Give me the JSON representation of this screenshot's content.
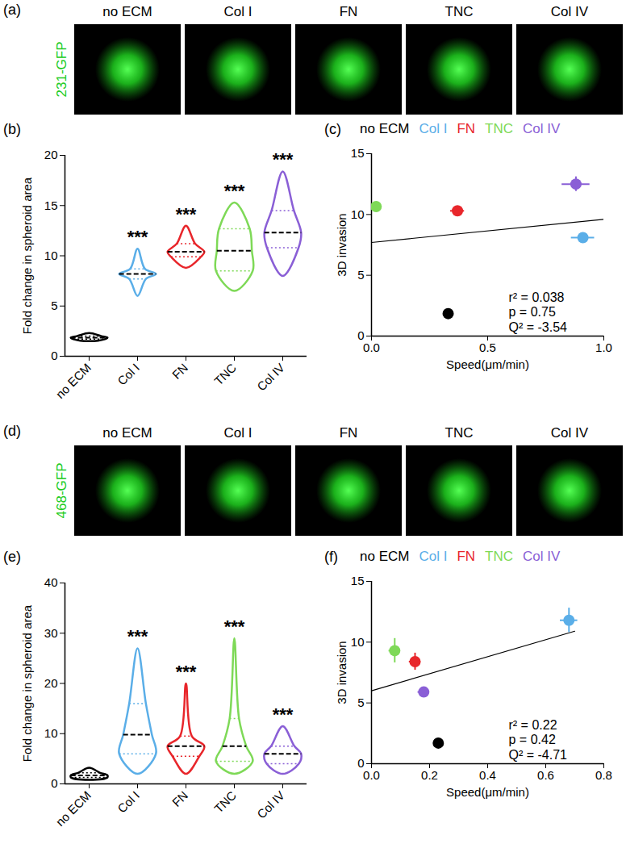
{
  "image_rows": [
    {
      "title": "(a)",
      "label": "231-GFP",
      "label_color": "#22cc22",
      "columns": [
        "no ECM",
        "Col I",
        "FN",
        "TNC",
        "Col IV"
      ]
    },
    {
      "title": "(d)",
      "label": "468-GFP",
      "label_color": "#22cc22",
      "columns": [
        "no ECM",
        "Col I",
        "FN",
        "TNC",
        "Col IV"
      ]
    }
  ],
  "chart_data": [
    {
      "type": "violin",
      "title": "(b)",
      "categories": [
        "no ECM",
        "Col I",
        "FN",
        "TNC",
        "Col IV"
      ],
      "colors": [
        "#000000",
        "#5aaee8",
        "#e8262b",
        "#7ed957",
        "#8a5fd6"
      ],
      "ylabel": "Fold change in spheroid area",
      "ylim": [
        0,
        20
      ],
      "yticks": [
        0,
        5,
        10,
        15,
        20
      ],
      "min": [
        1.5,
        6.0,
        8.8,
        6.5,
        8.0
      ],
      "q1": [
        1.7,
        7.7,
        9.9,
        8.5,
        10.8
      ],
      "median": [
        1.85,
        8.2,
        10.4,
        10.5,
        12.3
      ],
      "q3": [
        2.0,
        8.7,
        11.2,
        12.7,
        14.5
      ],
      "max": [
        2.3,
        10.7,
        13.0,
        15.3,
        18.4
      ],
      "annotations": [
        null,
        "***",
        "***",
        "***",
        "***"
      ]
    },
    {
      "type": "scatter",
      "title": "(c)",
      "legend": "top",
      "xlabel": "Speed(μm/min)",
      "ylabel": "3D invasion",
      "xlim": [
        0,
        1
      ],
      "xticks": [
        {
          "value": 0,
          "label": "0.0"
        },
        {
          "value": 0.5,
          "label": "0.5"
        },
        {
          "value": 1,
          "label": "1.0"
        }
      ],
      "ylim": [
        0,
        15
      ],
      "yticks": [
        0,
        5,
        10,
        15
      ],
      "series": [
        {
          "name": "no ECM",
          "color": "#000000",
          "x": [
            0.33
          ],
          "values": [
            1.85
          ],
          "x_error": [
            0.02
          ],
          "error": [
            0.3
          ]
        },
        {
          "name": "Col I",
          "color": "#5aaee8",
          "x": [
            0.91
          ],
          "values": [
            8.1
          ],
          "x_error": [
            0.05
          ],
          "error": [
            0.3
          ]
        },
        {
          "name": "FN",
          "color": "#e8262b",
          "x": [
            0.37
          ],
          "values": [
            10.3
          ],
          "x_error": [
            0.03
          ],
          "error": [
            0.3
          ]
        },
        {
          "name": "TNC",
          "color": "#7ed957",
          "x": [
            0.02
          ],
          "values": [
            10.65
          ],
          "x_error": [
            0.01
          ],
          "error": [
            0.3
          ]
        },
        {
          "name": "Col IV",
          "color": "#8a5fd6",
          "x": [
            0.88
          ],
          "values": [
            12.5
          ],
          "x_error": [
            0.06
          ],
          "error": [
            0.6
          ]
        }
      ],
      "fit": {
        "x": [
          0,
          1
        ],
        "y": [
          7.7,
          9.6
        ]
      },
      "annotations": [
        "r² = 0.038",
        "p = 0.75",
        "Q² = -3.54"
      ]
    },
    {
      "type": "violin",
      "title": "(e)",
      "categories": [
        "no ECM",
        "Col I",
        "FN",
        "TNC",
        "Col IV"
      ],
      "colors": [
        "#000000",
        "#5aaee8",
        "#e8262b",
        "#7ed957",
        "#8a5fd6"
      ],
      "ylabel": "Fold change in spheroid area",
      "ylim": [
        0,
        40
      ],
      "yticks": [
        0,
        10,
        20,
        30,
        40
      ],
      "min": [
        0.8,
        2.0,
        2.0,
        2.0,
        2.0
      ],
      "q1": [
        1.3,
        6.0,
        5.5,
        4.5,
        4.0
      ],
      "median": [
        1.7,
        9.8,
        7.5,
        7.5,
        6.0
      ],
      "q3": [
        2.2,
        16.0,
        9.5,
        13.0,
        7.5
      ],
      "max": [
        3.2,
        27.0,
        20.0,
        29.0,
        11.5
      ],
      "annotations": [
        null,
        "***",
        "***",
        "***",
        "***"
      ]
    },
    {
      "type": "scatter",
      "title": "(f)",
      "legend": "top",
      "xlabel": "Speed(μm/min)",
      "ylabel": "3D invasion",
      "xlim": [
        0,
        0.8
      ],
      "xticks": [
        {
          "value": 0,
          "label": "0.0"
        },
        {
          "value": 0.2,
          "label": "0.2"
        },
        {
          "value": 0.4,
          "label": "0.4"
        },
        {
          "value": 0.6,
          "label": "0.6"
        },
        {
          "value": 0.8,
          "label": "0.8"
        }
      ],
      "ylim": [
        0,
        15
      ],
      "yticks": [
        0,
        5,
        10,
        15
      ],
      "series": [
        {
          "name": "no ECM",
          "color": "#000000",
          "x": [
            0.23
          ],
          "values": [
            1.7
          ],
          "x_error": [
            0.01
          ],
          "error": [
            0.4
          ]
        },
        {
          "name": "Col I",
          "color": "#5aaee8",
          "x": [
            0.68
          ],
          "values": [
            11.8
          ],
          "x_error": [
            0.03
          ],
          "error": [
            1.0
          ]
        },
        {
          "name": "FN",
          "color": "#e8262b",
          "x": [
            0.15
          ],
          "values": [
            8.4
          ],
          "x_error": [
            0.02
          ],
          "error": [
            0.7
          ]
        },
        {
          "name": "TNC",
          "color": "#7ed957",
          "x": [
            0.08
          ],
          "values": [
            9.3
          ],
          "x_error": [
            0.02
          ],
          "error": [
            1.0
          ]
        },
        {
          "name": "Col IV",
          "color": "#8a5fd6",
          "x": [
            0.18
          ],
          "values": [
            5.9
          ],
          "x_error": [
            0.02
          ],
          "error": [
            0.4
          ]
        }
      ],
      "fit": {
        "x": [
          0,
          0.7
        ],
        "y": [
          6.0,
          10.9
        ]
      },
      "annotations": [
        "r² = 0.22",
        "p = 0.42",
        "Q² = -4.71"
      ]
    }
  ]
}
